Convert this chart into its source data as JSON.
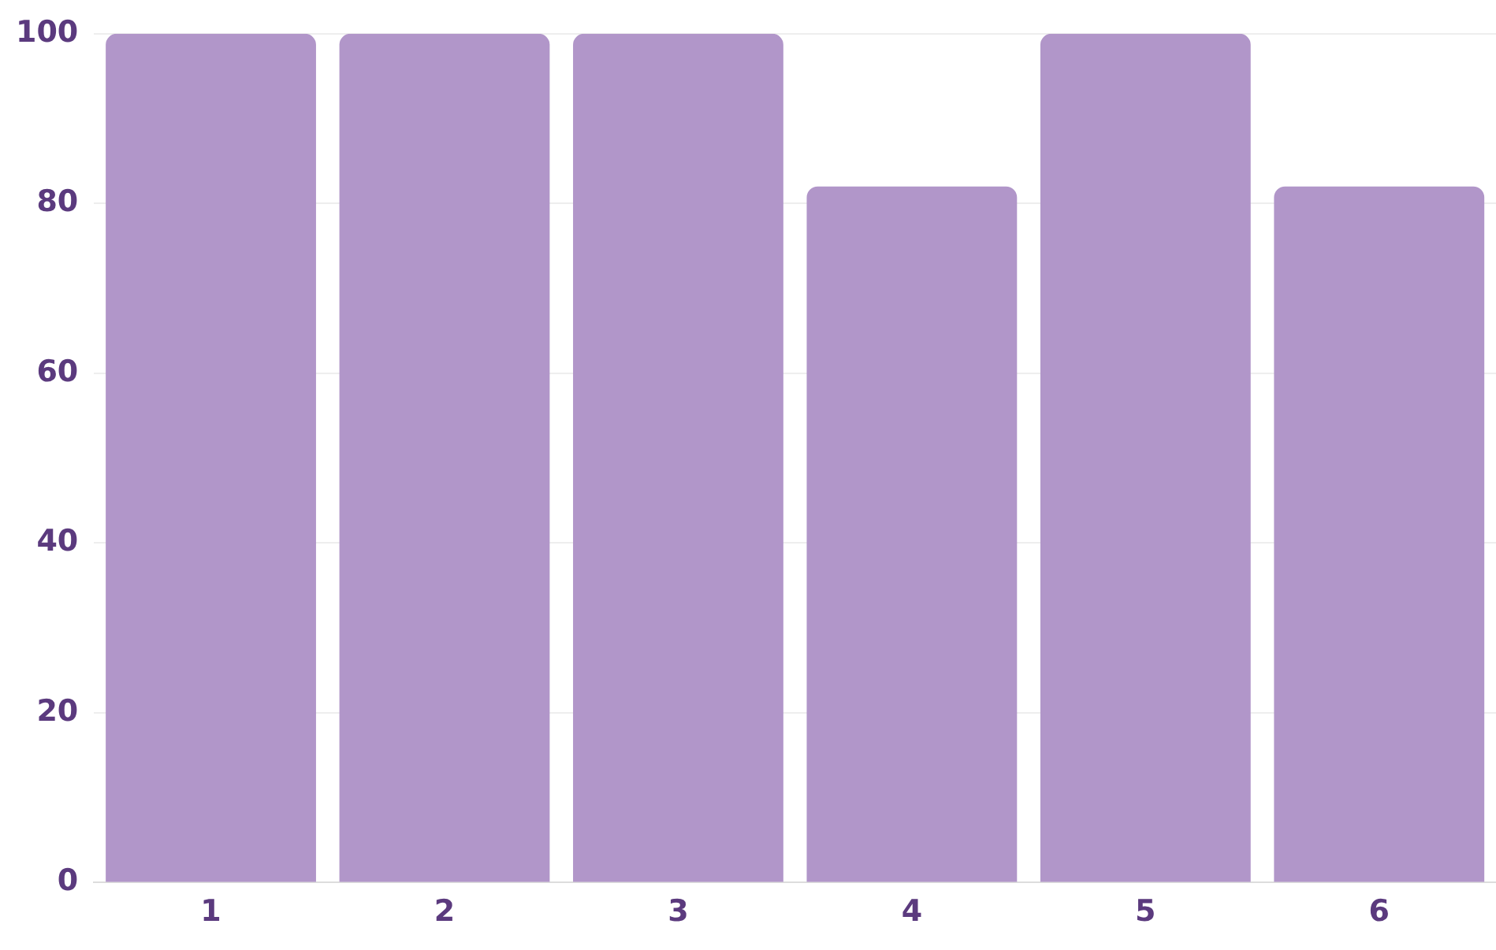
{
  "chart_data": {
    "type": "bar",
    "categories": [
      "1",
      "2",
      "3",
      "4",
      "5",
      "6"
    ],
    "values": [
      100,
      100,
      100,
      82,
      100,
      82
    ],
    "color": "#b196c9",
    "ylim": [
      0,
      100
    ],
    "yticks": [
      0,
      20,
      40,
      60,
      80,
      100
    ],
    "grid": "y",
    "legend": false
  }
}
